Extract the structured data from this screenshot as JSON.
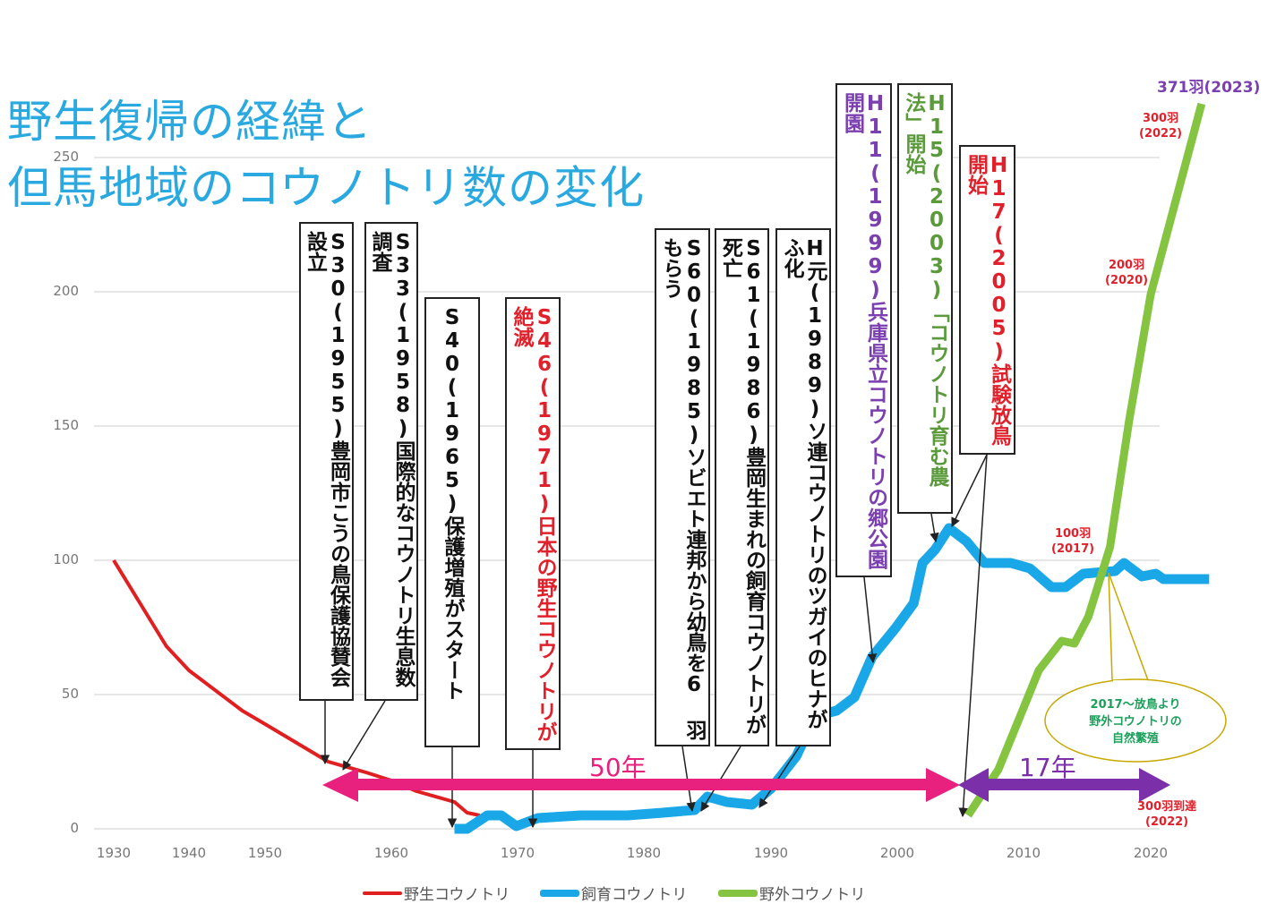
{
  "title": {
    "line1": "野生復帰の経緯と",
    "line2": "但馬地域のコウノトリ数の変化"
  },
  "chart_data": {
    "type": "line",
    "title": "野生復帰の経緯と但馬地域のコウノトリ数の変化",
    "xlabel": "",
    "ylabel": "",
    "x_ticks": [
      "1930",
      "1940",
      "1950",
      "1960",
      "1970",
      "1980",
      "1990",
      "2000",
      "2010",
      "2020"
    ],
    "y_ticks": [
      "0",
      "50",
      "100",
      "150",
      "200",
      "250"
    ],
    "ylim": [
      0,
      250
    ],
    "grid": true,
    "legend_position": "bottom",
    "series": [
      {
        "name": "野生コウノトリ",
        "color": "#e02020",
        "x": [
          1930,
          1937,
          1940,
          1947,
          1950,
          1955,
          1958,
          1960,
          1962,
          1965,
          1966,
          1967
        ],
        "y": [
          100,
          68,
          59,
          44,
          39,
          25,
          21,
          18,
          14,
          10,
          6,
          5
        ]
      },
      {
        "name": "飼育コウノトリ",
        "color": "#1aa7e8",
        "x": [
          1965,
          1966,
          1967.6,
          1968.7,
          1969.9,
          1971.6,
          1975,
          1978.7,
          1981.5,
          1984,
          1985,
          1986.5,
          1988.5,
          1990,
          1992,
          1993.5,
          1995.2,
          1996.6,
          1998,
          1999.9,
          2001.3,
          2002,
          2003,
          2004.1,
          2005.5,
          2006.9,
          2009,
          2010.5,
          2012.2,
          2013.3,
          2014.7,
          2017.2,
          2017.9,
          2019.3,
          2020.4,
          2021,
          2024.6
        ],
        "y": [
          0,
          0,
          5,
          5,
          1,
          4,
          5,
          5,
          6,
          7,
          12,
          10,
          9,
          15,
          27,
          42,
          44,
          49,
          64,
          75,
          84,
          99,
          104,
          112,
          107,
          99,
          99,
          97,
          90,
          90,
          95,
          96,
          99,
          94,
          95,
          93,
          93
        ]
      },
      {
        "name": "野外コウノトリ",
        "color": "#84c441",
        "x": [
          2005.6,
          2008,
          2010,
          2011.2,
          2013,
          2014,
          2015.1,
          2016.8,
          2018.3,
          2020,
          2024
        ],
        "y": [
          5,
          22,
          45,
          59,
          70,
          69,
          79,
          105,
          152,
          199,
          270
        ]
      }
    ],
    "annotations": [
      {
        "text": "S30(1955)豊岡市こうの鳥保護協賛会設立",
        "color": "#111111"
      },
      {
        "text": "S33(1958)国際的なコウノトリ生息数調査",
        "color": "#111111"
      },
      {
        "text": "S40(1965)保護増殖がスタート",
        "color": "#111111"
      },
      {
        "text": "S46(1971)日本の野生コウノトリが絶滅",
        "color": "#e0202a"
      },
      {
        "text": "S60(1985)ソビエト連邦から幼鳥を6 羽もらう",
        "color": "#111111"
      },
      {
        "text": "S61(1986)豊岡生まれの飼育コウノトリが死亡",
        "color": "#111111"
      },
      {
        "text": "H元(1989)ソ連コウノトリのツガイのヒナがふ化",
        "color": "#111111"
      },
      {
        "text": "H11(1999)兵庫県立コウノトリの郷公園開園",
        "color": "#7b3fb0"
      },
      {
        "text": "H15(2003)「コウノトリ育む農法」開始",
        "color": "#5a9a3a"
      },
      {
        "text": "H17(2005)試験放鳥開始",
        "color": "#e0202a"
      }
    ],
    "milestones": {
      "m371": "371羽(2023)",
      "m300_a": "300羽",
      "m300_b": "(2022)",
      "m200_a": "200羽",
      "m200_b": "(2020)",
      "m100_a": "100羽",
      "m100_b": "(2017)",
      "reach_a": "300羽到達",
      "reach_b": "(2022)"
    },
    "spans": {
      "span50": "50年",
      "span17": "17年"
    },
    "callout": {
      "line1": "2017～放鳥より",
      "line2": "野外コウノトリの",
      "line3": "自然繁殖"
    }
  }
}
